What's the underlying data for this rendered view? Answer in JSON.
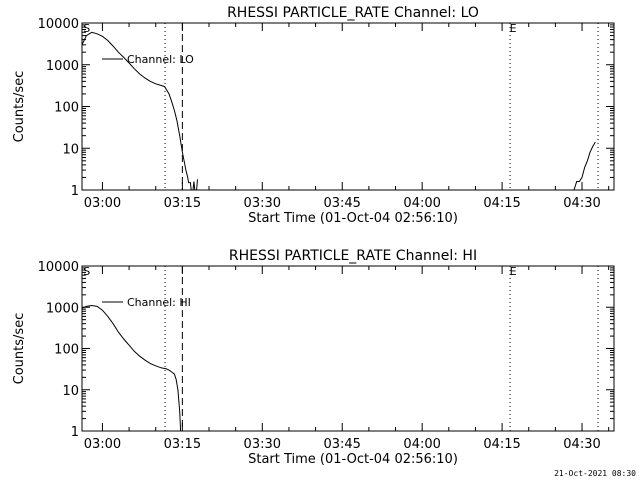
{
  "chart_data": [
    {
      "type": "line",
      "title": "RHESSI PARTICLE_RATE Channel: LO",
      "xlabel": "Start Time (01-Oct-04 02:56:10)",
      "ylabel": "Counts/sec",
      "y_scale": "log",
      "ylim": [
        1,
        10000
      ],
      "xlim": [
        "02:56:10",
        "04:36:00"
      ],
      "x_ticks": [
        "03:00",
        "03:15",
        "03:30",
        "03:45",
        "04:00",
        "04:15",
        "04:30"
      ],
      "y_ticks": [
        "1",
        "10",
        "100",
        "1000",
        "10000"
      ],
      "legend": "Channel: LO",
      "legend_position": "top-left",
      "markers": [
        {
          "time": "02:56:30",
          "label": "S",
          "style": "text"
        },
        {
          "time": "03:11:45",
          "style": "dotted"
        },
        {
          "time": "03:15:00",
          "style": "dashed"
        },
        {
          "time": "04:16:30",
          "label": "E",
          "style": "dotted"
        },
        {
          "time": "04:33:00",
          "style": "dotted"
        }
      ],
      "series": [
        {
          "name": "Channel: LO",
          "x": [
            "02:56:10",
            "02:57:00",
            "02:58:00",
            "02:59:00",
            "03:00:00",
            "03:01:00",
            "03:02:00",
            "03:03:00",
            "03:04:00",
            "03:05:00",
            "03:06:00",
            "03:07:00",
            "03:08:00",
            "03:09:00",
            "03:10:00",
            "03:11:00",
            "03:11:40",
            "03:12:30",
            "03:13:00",
            "03:13:30",
            "03:14:00",
            "03:14:30",
            "03:15:00",
            "03:15:20",
            "03:15:40",
            "03:16:00",
            "03:16:10",
            "03:16:30",
            "03:16:40",
            "03:17:00",
            "03:17:10",
            "03:17:20",
            "03:17:40",
            "03:17:50"
          ],
          "y": [
            3000,
            5000,
            6000,
            5500,
            4800,
            3800,
            2800,
            2000,
            1500,
            1100,
            800,
            600,
            480,
            400,
            350,
            320,
            300,
            200,
            130,
            80,
            45,
            20,
            8,
            5,
            3,
            2,
            1.5,
            1.5,
            1,
            1,
            1.6,
            1,
            1,
            1.8
          ]
        },
        {
          "name": "Channel: LO",
          "x": [
            "04:27:00",
            "04:27:30",
            "04:28:00",
            "04:28:30",
            "04:29:00",
            "04:29:30",
            "04:30:00",
            "04:30:30",
            "04:31:00",
            "04:31:30",
            "04:32:00",
            "04:32:30"
          ],
          "y": [
            1,
            1,
            1,
            1,
            1.6,
            1.6,
            2,
            3.5,
            5,
            8,
            11,
            14
          ]
        }
      ]
    },
    {
      "type": "line",
      "title": "RHESSI PARTICLE_RATE Channel: HI",
      "xlabel": "Start Time (01-Oct-04 02:56:10)",
      "ylabel": "Counts/sec",
      "y_scale": "log",
      "ylim": [
        1,
        10000
      ],
      "xlim": [
        "02:56:10",
        "04:36:00"
      ],
      "x_ticks": [
        "03:00",
        "03:15",
        "03:30",
        "03:45",
        "04:00",
        "04:15",
        "04:30"
      ],
      "y_ticks": [
        "1",
        "10",
        "100",
        "1000",
        "10000"
      ],
      "legend": "Channel: HI",
      "legend_position": "top-left",
      "markers": [
        {
          "time": "02:56:30",
          "label": "S",
          "style": "text"
        },
        {
          "time": "03:11:45",
          "style": "dotted"
        },
        {
          "time": "03:15:00",
          "style": "dashed"
        },
        {
          "time": "04:16:30",
          "label": "E",
          "style": "dotted"
        },
        {
          "time": "04:33:00",
          "style": "dotted"
        }
      ],
      "series": [
        {
          "name": "Channel: HI",
          "x": [
            "02:56:10",
            "02:57:00",
            "02:58:00",
            "02:59:00",
            "03:00:00",
            "03:01:00",
            "03:02:00",
            "03:03:00",
            "03:04:00",
            "03:05:00",
            "03:06:00",
            "03:07:00",
            "03:08:00",
            "03:09:00",
            "03:10:00",
            "03:11:00",
            "03:12:00",
            "03:12:30",
            "03:13:00",
            "03:13:30",
            "03:13:50",
            "03:14:10",
            "03:14:30",
            "03:14:40"
          ],
          "y": [
            950,
            1050,
            1100,
            1050,
            850,
            600,
            400,
            250,
            170,
            120,
            85,
            65,
            52,
            43,
            38,
            34,
            32,
            30,
            27,
            24,
            18,
            10,
            3,
            1
          ]
        }
      ]
    }
  ],
  "footer": "21-Oct-2021 08:30",
  "colors": {
    "background": "#ffffff",
    "foreground": "#000000"
  }
}
